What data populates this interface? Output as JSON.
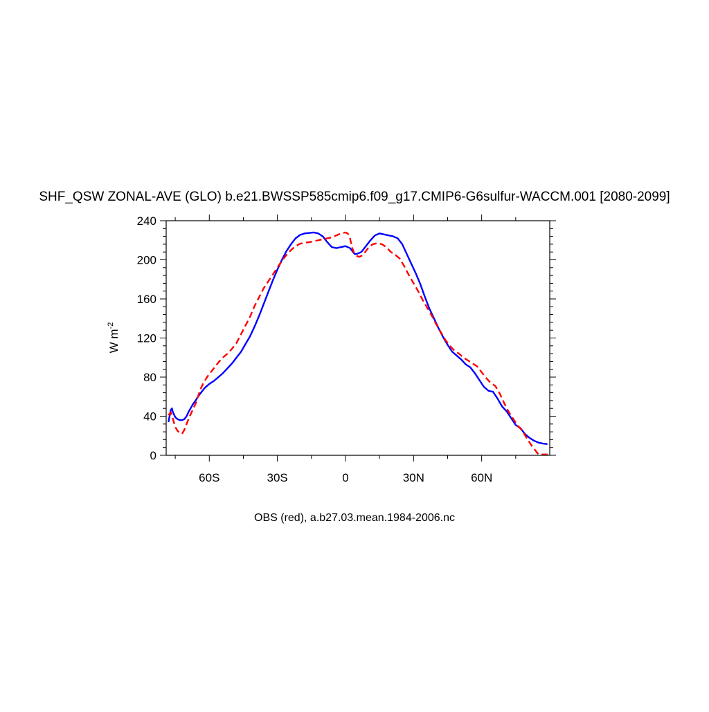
{
  "chart_data": {
    "type": "line",
    "title": "SHF_QSW ZONAL-AVE (GLO) b.e21.BWSSP585cmip6.f09_g17.CMIP6-G6sulfur-WACCM.001 [2080-2099]",
    "ylabel": "W m",
    "ylabel_superscript": "-2",
    "xlabel": "",
    "footer": "OBS (red), a.b27.03.mean.1984-2006.nc",
    "xlim": [
      -79,
      90
    ],
    "ylim": [
      0,
      240
    ],
    "x_ticks": [
      {
        "value": -60,
        "label": "60S"
      },
      {
        "value": -30,
        "label": "30S"
      },
      {
        "value": 0,
        "label": "0"
      },
      {
        "value": 30,
        "label": "30N"
      },
      {
        "value": 60,
        "label": "60N"
      }
    ],
    "y_ticks": [
      {
        "value": 0,
        "label": "0"
      },
      {
        "value": 40,
        "label": "40"
      },
      {
        "value": 80,
        "label": "80"
      },
      {
        "value": 120,
        "label": "120"
      },
      {
        "value": 160,
        "label": "160"
      },
      {
        "value": 200,
        "label": "200"
      },
      {
        "value": 240,
        "label": "240"
      }
    ],
    "grid": false,
    "series": [
      {
        "color": "#0000ff",
        "dash": "solid",
        "points": [
          [
            -78,
            34
          ],
          [
            -77,
            46
          ],
          [
            -76.5,
            48
          ],
          [
            -76,
            44
          ],
          [
            -75,
            39
          ],
          [
            -74,
            37
          ],
          [
            -73,
            36
          ],
          [
            -72,
            36
          ],
          [
            -71,
            37
          ],
          [
            -70,
            40
          ],
          [
            -69,
            45
          ],
          [
            -68,
            49
          ],
          [
            -67,
            53
          ],
          [
            -66,
            56
          ],
          [
            -65,
            60
          ],
          [
            -64,
            63
          ],
          [
            -63,
            66
          ],
          [
            -62,
            69
          ],
          [
            -61,
            71
          ],
          [
            -60,
            73
          ],
          [
            -58,
            76
          ],
          [
            -56,
            80
          ],
          [
            -54,
            84
          ],
          [
            -52,
            89
          ],
          [
            -50,
            94
          ],
          [
            -48,
            100
          ],
          [
            -46,
            106
          ],
          [
            -44,
            114
          ],
          [
            -42,
            122
          ],
          [
            -40,
            132
          ],
          [
            -38,
            143
          ],
          [
            -36,
            155
          ],
          [
            -34,
            167
          ],
          [
            -32,
            179
          ],
          [
            -30,
            190
          ],
          [
            -28,
            200
          ],
          [
            -26,
            209
          ],
          [
            -24,
            216
          ],
          [
            -22,
            222
          ],
          [
            -20,
            225.5
          ],
          [
            -18,
            227
          ],
          [
            -16,
            227.5
          ],
          [
            -14,
            228
          ],
          [
            -12,
            227
          ],
          [
            -10,
            224
          ],
          [
            -8,
            218
          ],
          [
            -6,
            213
          ],
          [
            -4,
            212
          ],
          [
            -2,
            213
          ],
          [
            0,
            214
          ],
          [
            2,
            212
          ],
          [
            3,
            209
          ],
          [
            4,
            206
          ],
          [
            5,
            206
          ],
          [
            7,
            208
          ],
          [
            9,
            214
          ],
          [
            11,
            220
          ],
          [
            13,
            225
          ],
          [
            15,
            227
          ],
          [
            17,
            226
          ],
          [
            19,
            225
          ],
          [
            21,
            224
          ],
          [
            23,
            222
          ],
          [
            25,
            216
          ],
          [
            27,
            206
          ],
          [
            29,
            196
          ],
          [
            31,
            186
          ],
          [
            33,
            175
          ],
          [
            35,
            162
          ],
          [
            37,
            150
          ],
          [
            39,
            140
          ],
          [
            41,
            130
          ],
          [
            43,
            121
          ],
          [
            45,
            113
          ],
          [
            47,
            106
          ],
          [
            49,
            102
          ],
          [
            51,
            98
          ],
          [
            53,
            93
          ],
          [
            55,
            90
          ],
          [
            57,
            84
          ],
          [
            59,
            77
          ],
          [
            61,
            70
          ],
          [
            63,
            66
          ],
          [
            65,
            65
          ],
          [
            67,
            58
          ],
          [
            69,
            50
          ],
          [
            71,
            45
          ],
          [
            73,
            38
          ],
          [
            75,
            31
          ],
          [
            77,
            28
          ],
          [
            79,
            22
          ],
          [
            81,
            18
          ],
          [
            83,
            15
          ],
          [
            85,
            13
          ],
          [
            87,
            12
          ],
          [
            89,
            11.5
          ]
        ]
      },
      {
        "color": "#ff0000",
        "dash": "dashed",
        "points": [
          [
            -78,
            41
          ],
          [
            -77,
            44
          ],
          [
            -76,
            37
          ],
          [
            -75,
            29
          ],
          [
            -74,
            25
          ],
          [
            -73,
            23
          ],
          [
            -72,
            22
          ],
          [
            -71,
            26
          ],
          [
            -70,
            32
          ],
          [
            -69,
            38
          ],
          [
            -68,
            43
          ],
          [
            -67,
            48
          ],
          [
            -66,
            53
          ],
          [
            -65,
            60
          ],
          [
            -64,
            67
          ],
          [
            -63,
            72
          ],
          [
            -62,
            76
          ],
          [
            -61,
            80
          ],
          [
            -60,
            83
          ],
          [
            -58,
            89
          ],
          [
            -56,
            95
          ],
          [
            -54,
            100
          ],
          [
            -52,
            104
          ],
          [
            -50,
            109
          ],
          [
            -48,
            115
          ],
          [
            -46,
            124
          ],
          [
            -44,
            133
          ],
          [
            -42,
            142
          ],
          [
            -40,
            153
          ],
          [
            -38,
            162
          ],
          [
            -36,
            171
          ],
          [
            -34,
            178
          ],
          [
            -32,
            185
          ],
          [
            -30,
            192
          ],
          [
            -28,
            199
          ],
          [
            -26,
            205
          ],
          [
            -24,
            210
          ],
          [
            -22,
            214
          ],
          [
            -20,
            216.5
          ],
          [
            -18,
            217.5
          ],
          [
            -16,
            218
          ],
          [
            -14,
            219
          ],
          [
            -12,
            220
          ],
          [
            -10,
            221
          ],
          [
            -8,
            222
          ],
          [
            -6,
            223
          ],
          [
            -4,
            225
          ],
          [
            -2,
            227
          ],
          [
            0,
            228
          ],
          [
            1,
            227
          ],
          [
            2,
            222
          ],
          [
            3,
            212
          ],
          [
            4,
            206
          ],
          [
            5,
            204
          ],
          [
            6,
            203
          ],
          [
            7,
            204
          ],
          [
            8,
            206
          ],
          [
            10,
            212
          ],
          [
            12,
            216
          ],
          [
            14,
            217
          ],
          [
            16,
            216
          ],
          [
            18,
            213
          ],
          [
            20,
            208
          ],
          [
            22,
            205
          ],
          [
            24,
            201
          ],
          [
            26,
            193
          ],
          [
            28,
            184
          ],
          [
            30,
            176
          ],
          [
            32,
            168
          ],
          [
            34,
            159
          ],
          [
            36,
            151
          ],
          [
            38,
            143
          ],
          [
            40,
            134
          ],
          [
            42,
            126
          ],
          [
            44,
            118
          ],
          [
            46,
            112
          ],
          [
            48,
            107
          ],
          [
            50,
            104
          ],
          [
            52,
            100
          ],
          [
            54,
            97
          ],
          [
            56,
            94
          ],
          [
            58,
            91
          ],
          [
            60,
            85
          ],
          [
            62,
            79
          ],
          [
            64,
            74
          ],
          [
            66,
            71
          ],
          [
            68,
            63
          ],
          [
            70,
            53
          ],
          [
            72,
            44
          ],
          [
            74,
            37
          ],
          [
            76,
            30
          ],
          [
            78,
            25
          ],
          [
            80,
            17
          ],
          [
            82,
            10
          ],
          [
            84,
            4
          ],
          [
            85,
            1
          ],
          [
            86,
            0.8
          ],
          [
            90,
            0.8
          ]
        ]
      }
    ]
  }
}
